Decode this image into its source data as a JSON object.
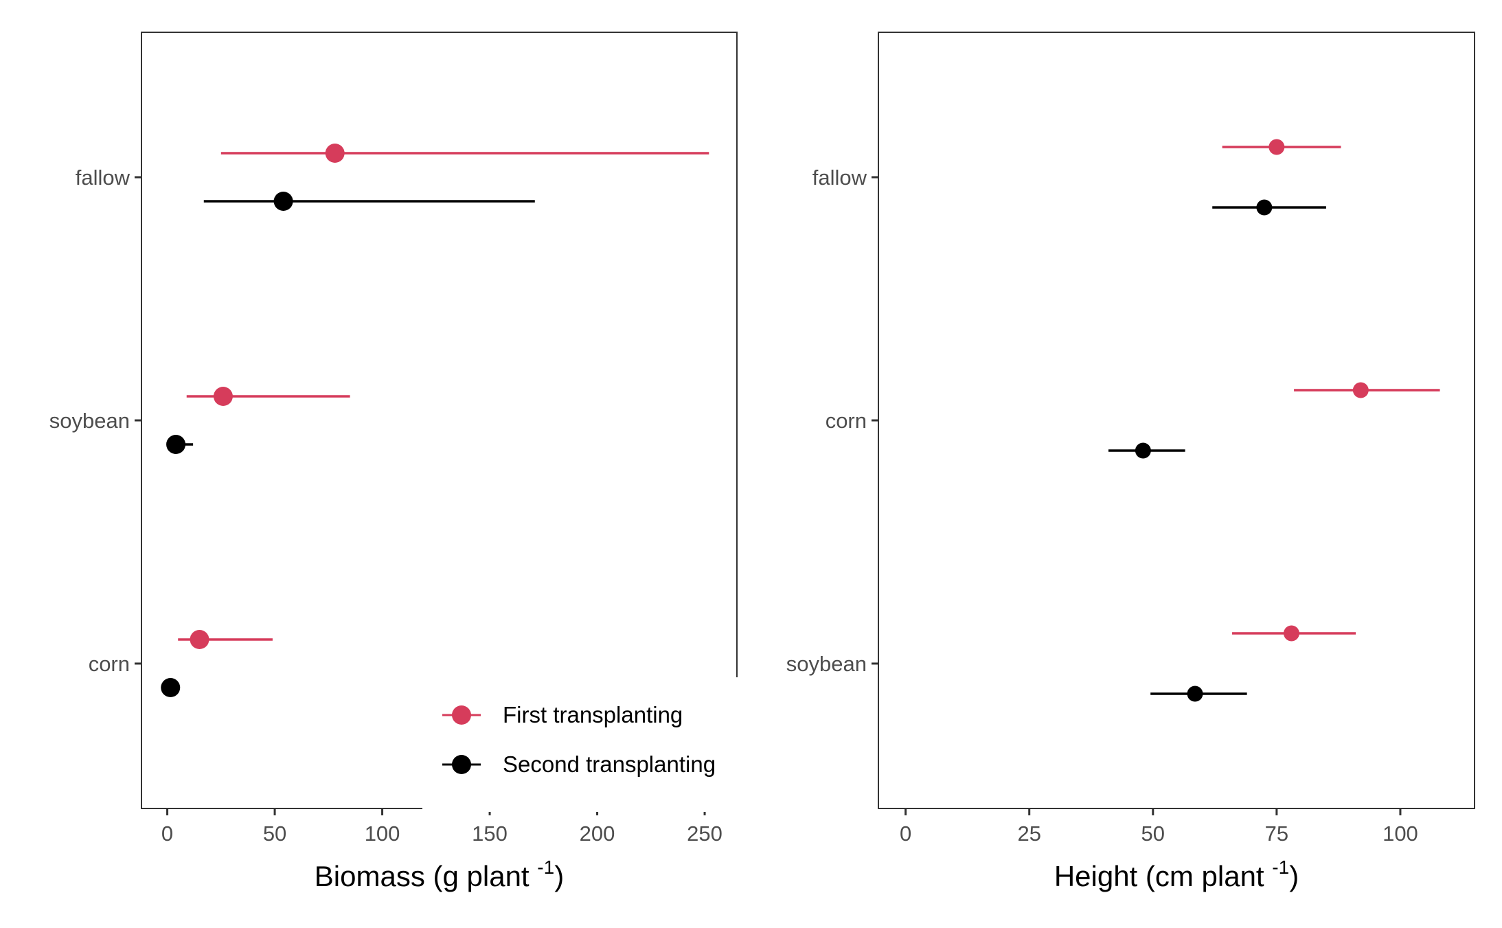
{
  "colors": {
    "first": "#d63c5b",
    "second": "#000000",
    "panel_border": "#333333",
    "tick": "#333333"
  },
  "legend": {
    "first_label": "First transplanting",
    "second_label": "Second transplanting",
    "placement": "bottom-right of left panel"
  },
  "chart_data": [
    {
      "type": "scatter",
      "subtype": "point-range (horizontal error bars)",
      "xlabel_main": "Biomass (g plant ",
      "xlabel_sup": "-1",
      "xlabel_tail": ")",
      "xlim": [
        -12,
        265
      ],
      "xticks": [
        0,
        50,
        100,
        150,
        200,
        250
      ],
      "categories": [
        "fallow",
        "soybean",
        "corn"
      ],
      "grid": false,
      "series": [
        {
          "name": "First transplanting",
          "color_key": "first",
          "points": [
            {
              "category": "fallow",
              "x": 78,
              "xmin": 25,
              "xmax": 252
            },
            {
              "category": "soybean",
              "x": 26,
              "xmin": 9,
              "xmax": 85
            },
            {
              "category": "corn",
              "x": 15,
              "xmin": 5,
              "xmax": 49
            }
          ]
        },
        {
          "name": "Second transplanting",
          "color_key": "second",
          "points": [
            {
              "category": "fallow",
              "x": 54,
              "xmin": 17,
              "xmax": 171
            },
            {
              "category": "soybean",
              "x": 4,
              "xmin": 1,
              "xmax": 12
            },
            {
              "category": "corn",
              "x": 1.5,
              "xmin": 1,
              "xmax": 2
            }
          ]
        }
      ]
    },
    {
      "type": "scatter",
      "subtype": "point-range (horizontal error bars)",
      "xlabel_main": "Height (cm plant ",
      "xlabel_sup": "-1",
      "xlabel_tail": ")",
      "xlim": [
        -5.5,
        115
      ],
      "xticks": [
        0,
        25,
        50,
        75,
        100
      ],
      "categories": [
        "fallow",
        "corn",
        "soybean"
      ],
      "grid": false,
      "series": [
        {
          "name": "First transplanting",
          "color_key": "first",
          "points": [
            {
              "category": "fallow",
              "x": 75,
              "xmin": 64,
              "xmax": 88
            },
            {
              "category": "corn",
              "x": 92,
              "xmin": 78.5,
              "xmax": 108
            },
            {
              "category": "soybean",
              "x": 78,
              "xmin": 66,
              "xmax": 91
            }
          ]
        },
        {
          "name": "Second transplanting",
          "color_key": "second",
          "points": [
            {
              "category": "fallow",
              "x": 72.5,
              "xmin": 62,
              "xmax": 85
            },
            {
              "category": "corn",
              "x": 48,
              "xmin": 41,
              "xmax": 56.5
            },
            {
              "category": "soybean",
              "x": 58.5,
              "xmin": 49.5,
              "xmax": 69
            }
          ]
        }
      ]
    }
  ]
}
